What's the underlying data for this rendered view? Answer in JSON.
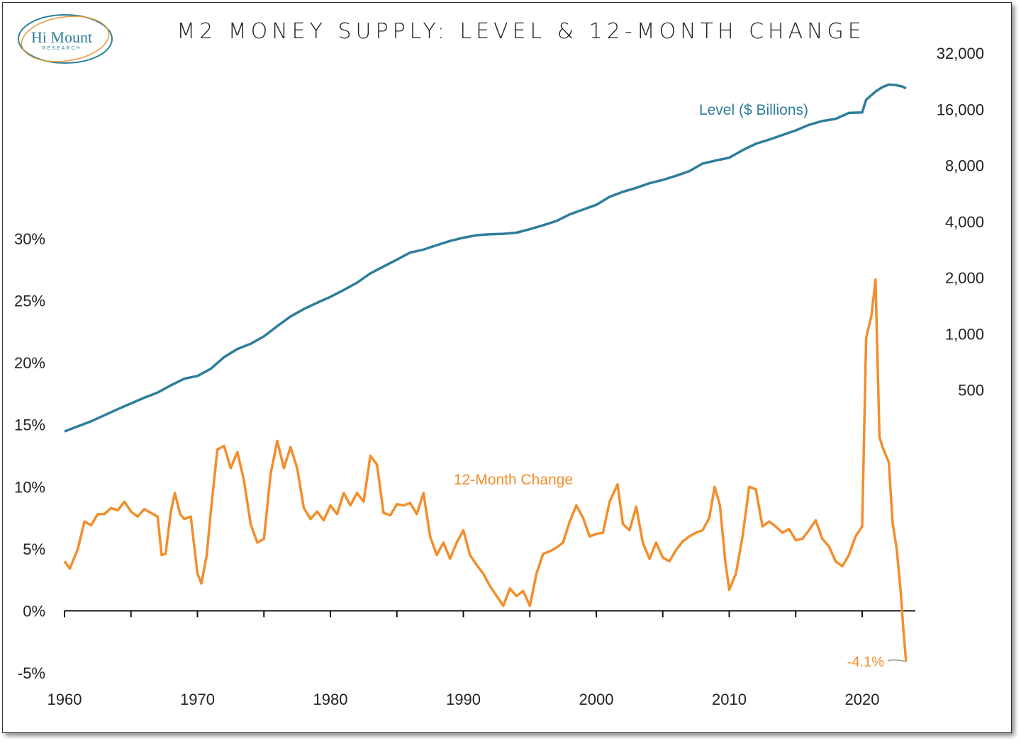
{
  "title": "M2 MONEY SUPPLY: LEVEL & 12-MONTH CHANGE",
  "logo": {
    "text": "Hi Mount",
    "subtext": "RESEARCH",
    "color": "#2e7f9a",
    "accent": "#e8963a"
  },
  "colors": {
    "level": "#2e7d9b",
    "change": "#f28e2b",
    "axis": "#111111",
    "callout": "#9a9a9a"
  },
  "chart_data": {
    "type": "line",
    "title": "M2 MONEY SUPPLY: LEVEL & 12-MONTH CHANGE",
    "x_ticks": [
      1960,
      1970,
      1980,
      1990,
      2000,
      2010,
      2020
    ],
    "x_tick_labels": [
      "1960",
      "1970",
      "1980",
      "1990",
      "2000",
      "2010",
      "2020"
    ],
    "xlim": [
      1960,
      2024
    ],
    "left_axis": {
      "ticks": [
        -5,
        0,
        5,
        10,
        15,
        20,
        25,
        30
      ],
      "tick_labels": [
        "-5%",
        "0%",
        "5%",
        "10%",
        "15%",
        "20%",
        "25%",
        "30%"
      ],
      "ylim": [
        -5,
        30
      ]
    },
    "right_axis": {
      "scale": "log",
      "ticks": [
        500,
        1000,
        2000,
        4000,
        8000,
        16000,
        32000
      ],
      "tick_labels": [
        "500",
        "1,000",
        "2,000",
        "4,000",
        "8,000",
        "16,000",
        "32,000"
      ],
      "ylim": [
        250,
        32000
      ]
    },
    "series": [
      {
        "name": "Level ($ Billions)",
        "axis": "right",
        "points": [
          [
            1960.0,
            300
          ],
          [
            1962.0,
            340
          ],
          [
            1964.0,
            395
          ],
          [
            1966.0,
            455
          ],
          [
            1967.0,
            485
          ],
          [
            1968.0,
            530
          ],
          [
            1969.0,
            575
          ],
          [
            1970.0,
            595
          ],
          [
            1971.0,
            650
          ],
          [
            1972.0,
            750
          ],
          [
            1973.0,
            830
          ],
          [
            1974.0,
            885
          ],
          [
            1975.0,
            970
          ],
          [
            1976.0,
            1100
          ],
          [
            1977.0,
            1240
          ],
          [
            1978.0,
            1360
          ],
          [
            1979.0,
            1470
          ],
          [
            1980.0,
            1580
          ],
          [
            1981.0,
            1720
          ],
          [
            1982.0,
            1880
          ],
          [
            1983.0,
            2110
          ],
          [
            1984.0,
            2300
          ],
          [
            1985.0,
            2500
          ],
          [
            1986.0,
            2730
          ],
          [
            1987.0,
            2830
          ],
          [
            1988.0,
            2990
          ],
          [
            1989.0,
            3150
          ],
          [
            1990.0,
            3280
          ],
          [
            1991.0,
            3380
          ],
          [
            1992.0,
            3420
          ],
          [
            1993.0,
            3440
          ],
          [
            1994.0,
            3490
          ],
          [
            1995.0,
            3640
          ],
          [
            1996.0,
            3820
          ],
          [
            1997.0,
            4030
          ],
          [
            1998.0,
            4370
          ],
          [
            1999.0,
            4640
          ],
          [
            2000.0,
            4920
          ],
          [
            2001.0,
            5430
          ],
          [
            2002.0,
            5780
          ],
          [
            2003.0,
            6070
          ],
          [
            2004.0,
            6420
          ],
          [
            2005.0,
            6690
          ],
          [
            2006.0,
            7040
          ],
          [
            2007.0,
            7460
          ],
          [
            2008.0,
            8190
          ],
          [
            2009.0,
            8500
          ],
          [
            2010.0,
            8800
          ],
          [
            2011.0,
            9650
          ],
          [
            2012.0,
            10450
          ],
          [
            2013.0,
            11000
          ],
          [
            2014.0,
            11650
          ],
          [
            2015.0,
            12330
          ],
          [
            2016.0,
            13200
          ],
          [
            2017.0,
            13850
          ],
          [
            2018.0,
            14200
          ],
          [
            2019.0,
            15300
          ],
          [
            2020.0,
            15400
          ],
          [
            2020.3,
            18000
          ],
          [
            2021.0,
            19900
          ],
          [
            2021.5,
            21000
          ],
          [
            2022.0,
            21700
          ],
          [
            2022.5,
            21600
          ],
          [
            2023.0,
            21200
          ],
          [
            2023.3,
            20700
          ]
        ]
      },
      {
        "name": "12-Month Change",
        "axis": "left",
        "points": [
          [
            1960.0,
            4.0
          ],
          [
            1960.4,
            3.4
          ],
          [
            1961.0,
            5.0
          ],
          [
            1961.5,
            7.2
          ],
          [
            1962.0,
            6.9
          ],
          [
            1962.5,
            7.8
          ],
          [
            1963.0,
            7.8
          ],
          [
            1963.5,
            8.3
          ],
          [
            1964.0,
            8.1
          ],
          [
            1964.5,
            8.8
          ],
          [
            1965.0,
            8.0
          ],
          [
            1965.5,
            7.6
          ],
          [
            1966.0,
            8.2
          ],
          [
            1966.5,
            7.9
          ],
          [
            1967.0,
            7.6
          ],
          [
            1967.3,
            4.5
          ],
          [
            1967.6,
            4.6
          ],
          [
            1968.0,
            8.0
          ],
          [
            1968.3,
            9.5
          ],
          [
            1968.7,
            7.8
          ],
          [
            1969.0,
            7.4
          ],
          [
            1969.5,
            7.6
          ],
          [
            1970.0,
            3.0
          ],
          [
            1970.3,
            2.2
          ],
          [
            1970.7,
            4.5
          ],
          [
            1971.0,
            8.0
          ],
          [
            1971.5,
            13.0
          ],
          [
            1972.0,
            13.3
          ],
          [
            1972.5,
            11.5
          ],
          [
            1973.0,
            12.8
          ],
          [
            1973.5,
            10.5
          ],
          [
            1974.0,
            7.0
          ],
          [
            1974.5,
            5.5
          ],
          [
            1975.0,
            5.8
          ],
          [
            1975.5,
            11.0
          ],
          [
            1976.0,
            13.7
          ],
          [
            1976.5,
            11.5
          ],
          [
            1977.0,
            13.2
          ],
          [
            1977.5,
            11.5
          ],
          [
            1978.0,
            8.3
          ],
          [
            1978.5,
            7.4
          ],
          [
            1979.0,
            8.0
          ],
          [
            1979.5,
            7.3
          ],
          [
            1980.0,
            8.5
          ],
          [
            1980.5,
            7.8
          ],
          [
            1981.0,
            9.5
          ],
          [
            1981.5,
            8.5
          ],
          [
            1982.0,
            9.5
          ],
          [
            1982.5,
            8.8
          ],
          [
            1983.0,
            12.5
          ],
          [
            1983.5,
            11.8
          ],
          [
            1984.0,
            7.9
          ],
          [
            1984.5,
            7.7
          ],
          [
            1985.0,
            8.6
          ],
          [
            1985.5,
            8.5
          ],
          [
            1986.0,
            8.7
          ],
          [
            1986.5,
            7.8
          ],
          [
            1987.0,
            9.5
          ],
          [
            1987.5,
            6.0
          ],
          [
            1988.0,
            4.5
          ],
          [
            1988.5,
            5.5
          ],
          [
            1989.0,
            4.2
          ],
          [
            1989.5,
            5.5
          ],
          [
            1990.0,
            6.5
          ],
          [
            1990.5,
            4.5
          ],
          [
            1991.0,
            3.7
          ],
          [
            1991.5,
            3.0
          ],
          [
            1992.0,
            2.0
          ],
          [
            1992.5,
            1.2
          ],
          [
            1993.0,
            0.4
          ],
          [
            1993.5,
            1.8
          ],
          [
            1994.0,
            1.2
          ],
          [
            1994.5,
            1.6
          ],
          [
            1995.0,
            0.4
          ],
          [
            1995.5,
            3.0
          ],
          [
            1996.0,
            4.6
          ],
          [
            1996.5,
            4.8
          ],
          [
            1997.0,
            5.1
          ],
          [
            1997.5,
            5.5
          ],
          [
            1998.0,
            7.2
          ],
          [
            1998.5,
            8.5
          ],
          [
            1999.0,
            7.5
          ],
          [
            1999.5,
            6.0
          ],
          [
            2000.0,
            6.2
          ],
          [
            2000.5,
            6.3
          ],
          [
            2001.0,
            8.8
          ],
          [
            2001.6,
            10.2
          ],
          [
            2002.0,
            7.0
          ],
          [
            2002.5,
            6.5
          ],
          [
            2003.0,
            8.4
          ],
          [
            2003.5,
            5.5
          ],
          [
            2004.0,
            4.2
          ],
          [
            2004.5,
            5.5
          ],
          [
            2005.0,
            4.3
          ],
          [
            2005.5,
            4.0
          ],
          [
            2006.0,
            4.9
          ],
          [
            2006.5,
            5.6
          ],
          [
            2007.0,
            6.0
          ],
          [
            2007.5,
            6.3
          ],
          [
            2008.0,
            6.5
          ],
          [
            2008.5,
            7.5
          ],
          [
            2008.9,
            10.0
          ],
          [
            2009.3,
            8.5
          ],
          [
            2009.7,
            4.0
          ],
          [
            2010.0,
            1.7
          ],
          [
            2010.5,
            3.0
          ],
          [
            2011.0,
            6.0
          ],
          [
            2011.5,
            10.0
          ],
          [
            2012.0,
            9.8
          ],
          [
            2012.5,
            6.8
          ],
          [
            2013.0,
            7.2
          ],
          [
            2013.5,
            6.8
          ],
          [
            2014.0,
            6.3
          ],
          [
            2014.5,
            6.6
          ],
          [
            2015.0,
            5.7
          ],
          [
            2015.5,
            5.8
          ],
          [
            2016.0,
            6.5
          ],
          [
            2016.5,
            7.3
          ],
          [
            2017.0,
            5.8
          ],
          [
            2017.5,
            5.2
          ],
          [
            2018.0,
            4.0
          ],
          [
            2018.5,
            3.6
          ],
          [
            2019.0,
            4.5
          ],
          [
            2019.5,
            6.0
          ],
          [
            2020.0,
            6.8
          ],
          [
            2020.3,
            22.0
          ],
          [
            2020.7,
            23.8
          ],
          [
            2021.0,
            26.7
          ],
          [
            2021.3,
            14.0
          ],
          [
            2021.6,
            13.0
          ],
          [
            2022.0,
            12.0
          ],
          [
            2022.3,
            7.0
          ],
          [
            2022.6,
            5.0
          ],
          [
            2022.9,
            1.5
          ],
          [
            2023.1,
            -1.5
          ],
          [
            2023.3,
            -4.1
          ]
        ]
      }
    ],
    "annotations": [
      {
        "text": "Level ($ Billions)",
        "series": "Level ($ Billions)"
      },
      {
        "text": "12-Month Change",
        "series": "12-Month Change"
      },
      {
        "text": "-4.1%",
        "series": "12-Month Change",
        "x": 2023.3,
        "y": -4.1
      }
    ]
  }
}
